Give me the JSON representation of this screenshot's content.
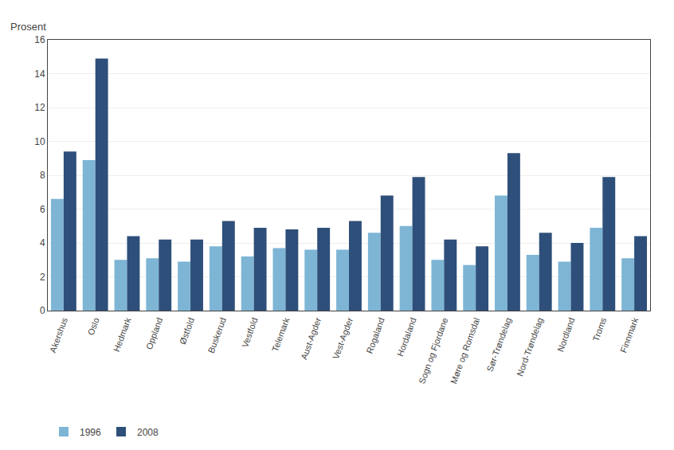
{
  "chart_data": {
    "type": "bar",
    "ylabel": "Prosent",
    "categories": [
      "Akershus",
      "Oslo",
      "Hedmark",
      "Oppland",
      "Østfold",
      "Buskerud",
      "Vestfold",
      "Telemark",
      "Aust-Agder",
      "Vest-Agder",
      "Rogaland",
      "Hordaland",
      "Sogn og Fjordane",
      "Møre og Romsdal",
      "Sør-Trøndelag",
      "Nord-Trøndelag",
      "Nordland",
      "Troms",
      "Finnmark"
    ],
    "series": [
      {
        "name": "1996",
        "color": "#7eb5d5",
        "values": [
          6.6,
          8.9,
          3.0,
          3.1,
          2.9,
          3.8,
          3.2,
          3.7,
          3.6,
          3.6,
          4.6,
          5.0,
          3.0,
          2.7,
          6.8,
          3.3,
          2.9,
          4.9,
          3.1
        ]
      },
      {
        "name": "2008",
        "color": "#2e4f7a",
        "values": [
          9.4,
          14.9,
          4.4,
          4.2,
          4.2,
          5.3,
          4.9,
          4.8,
          4.9,
          5.3,
          6.8,
          7.9,
          4.2,
          3.8,
          9.3,
          4.6,
          4.0,
          7.9,
          4.4
        ]
      }
    ],
    "ylim": [
      0,
      16
    ],
    "yticks": [
      0,
      2,
      4,
      6,
      8,
      10,
      12,
      14,
      16
    ],
    "grid": true,
    "legend": "bottom"
  }
}
